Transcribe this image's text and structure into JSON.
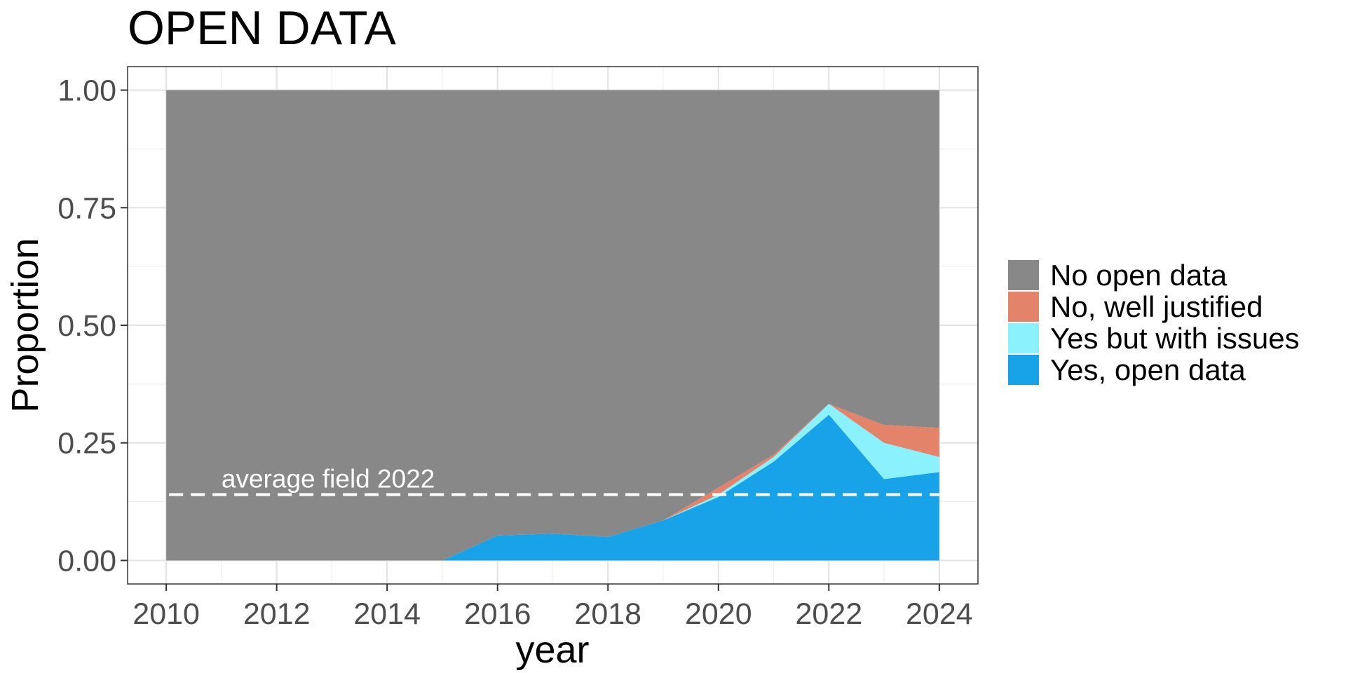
{
  "chart_data": {
    "type": "area",
    "stacked": true,
    "title": "OPEN DATA",
    "xlabel": "year",
    "ylabel": "Proportion",
    "xlim": [
      2009.3,
      2024.7
    ],
    "ylim": [
      -0.05,
      1.05
    ],
    "x_ticks": [
      2010,
      2012,
      2014,
      2016,
      2018,
      2020,
      2022,
      2024
    ],
    "x_tick_labels": [
      "2010",
      "2012",
      "2014",
      "2016",
      "2018",
      "2020",
      "2022",
      "2024"
    ],
    "y_ticks": [
      0,
      0.25,
      0.5,
      0.75,
      1.0
    ],
    "y_tick_labels": [
      "0.00",
      "0.25",
      "0.50",
      "0.75",
      "1.00"
    ],
    "grid": true,
    "legend_position": "right",
    "x": [
      2010,
      2011,
      2012,
      2013,
      2014,
      2015,
      2016,
      2017,
      2018,
      2019,
      2020,
      2021,
      2022,
      2023,
      2024
    ],
    "series": [
      {
        "name": "Yes, open data",
        "color": "#18A3E8",
        "values": [
          0,
          0,
          0,
          0,
          0,
          0,
          0.053,
          0.057,
          0.05,
          0.085,
          0.135,
          0.21,
          0.31,
          0.173,
          0.188
        ]
      },
      {
        "name": "Yes but with issues",
        "color": "#8BF1FD",
        "values": [
          0,
          0,
          0,
          0,
          0,
          0,
          0,
          0,
          0,
          0,
          0.005,
          0.01,
          0.023,
          0.077,
          0.032
        ]
      },
      {
        "name": "No, well justified",
        "color": "#E2836A",
        "values": [
          0,
          0,
          0,
          0,
          0,
          0,
          0,
          0,
          0,
          0,
          0.015,
          0.005,
          0,
          0.038,
          0.062
        ]
      },
      {
        "name": "No open data",
        "color": "#888888",
        "values": [
          1,
          1,
          1,
          1,
          1,
          1,
          0.947,
          0.943,
          0.95,
          0.915,
          0.845,
          0.775,
          0.667,
          0.712,
          0.718
        ]
      }
    ],
    "legend_order": [
      "No open data",
      "No, well justified",
      "Yes but with issues",
      "Yes, open data"
    ],
    "reference_line": {
      "y": 0.14,
      "label": "average field 2022",
      "color": "#ffffff",
      "style": "dashed"
    }
  }
}
